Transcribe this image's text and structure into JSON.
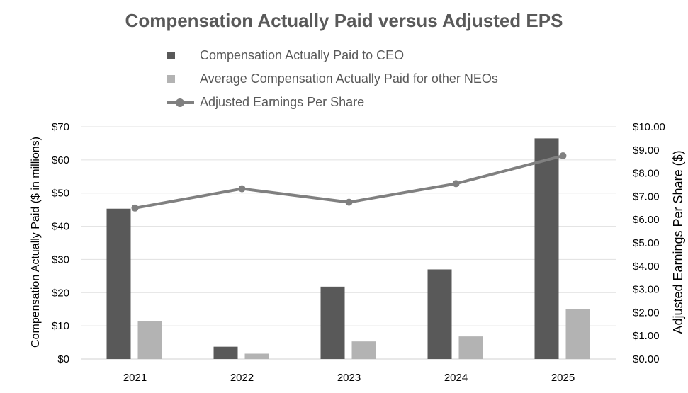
{
  "chart_data": {
    "type": "bar",
    "title": "Compensation Actually Paid versus Adjusted EPS",
    "categories": [
      "2021",
      "2022",
      "2023",
      "2024",
      "2025"
    ],
    "series": [
      {
        "name": "Compensation Actually Paid to CEO",
        "type": "bar",
        "axis": "left",
        "values": [
          45.3,
          3.7,
          21.8,
          27.0,
          66.5
        ],
        "color": "#595959"
      },
      {
        "name": "Average Compensation Actually Paid for other NEOs",
        "type": "bar",
        "axis": "left",
        "values": [
          11.4,
          1.6,
          5.3,
          6.8,
          15.0
        ],
        "color": "#b3b3b3"
      },
      {
        "name": "Adjusted Earnings Per Share",
        "type": "line",
        "axis": "right",
        "values": [
          6.5,
          7.33,
          6.75,
          7.55,
          8.75
        ],
        "color": "#808080"
      }
    ],
    "ylabel": "Compensation Actually Paid ($ in millions)",
    "y2label": "Adjusted Earnings Per Share ($)",
    "ylim": [
      0,
      70
    ],
    "y2lim": [
      0,
      10
    ],
    "yticks": [
      "$0",
      "$10",
      "$20",
      "$30",
      "$40",
      "$50",
      "$60",
      "$70"
    ],
    "y2ticks": [
      "$0.00",
      "$1.00",
      "$2.00",
      "$3.00",
      "$4.00",
      "$5.00",
      "$6.00",
      "$7.00",
      "$8.00",
      "$9.00",
      "$10.00"
    ],
    "grid": true,
    "legend_position": "top"
  }
}
